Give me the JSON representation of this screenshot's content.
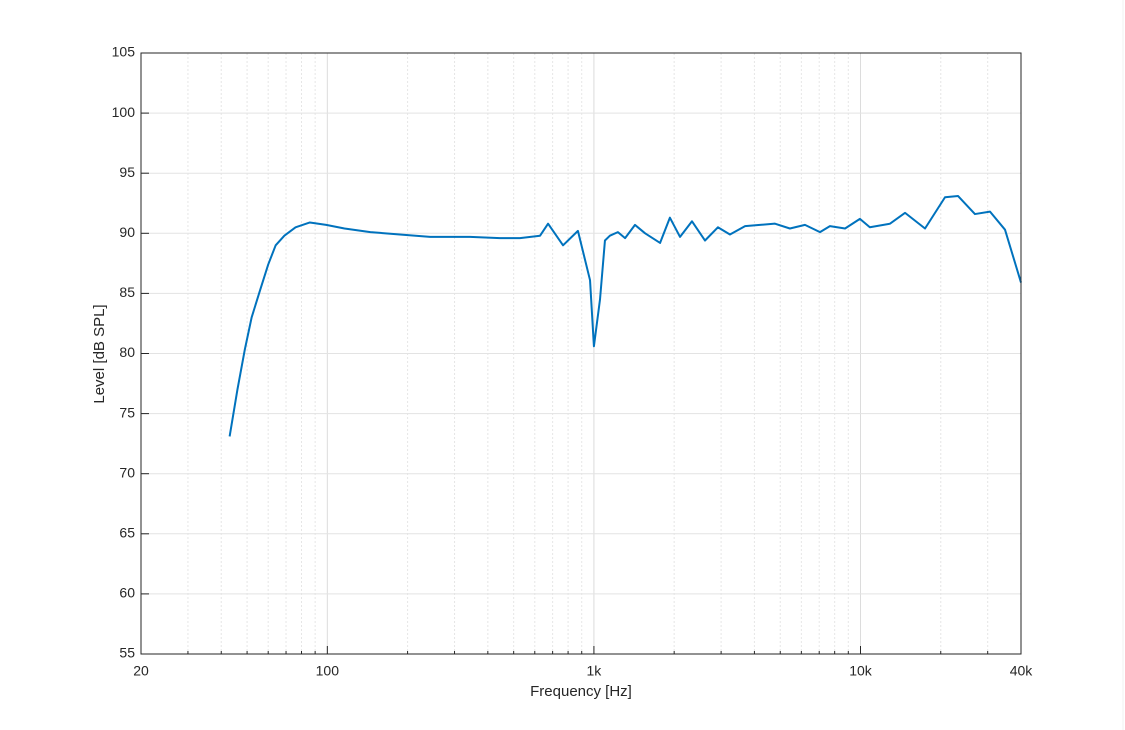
{
  "chart_data": {
    "type": "line",
    "xlabel": "Frequency [Hz]",
    "ylabel": "Level [dB SPL]",
    "xscale": "log",
    "grid": true,
    "xlim": [
      20,
      40000
    ],
    "ylim": [
      55,
      105
    ],
    "xticks": [
      20,
      100,
      {
        "value": 1000,
        "label": "1k"
      },
      {
        "value": 10000,
        "label": "10k"
      },
      {
        "value": 40000,
        "label": "40k"
      }
    ],
    "xminorticks": [
      30,
      40,
      50,
      60,
      70,
      80,
      90,
      200,
      300,
      400,
      500,
      600,
      700,
      800,
      900,
      2000,
      3000,
      4000,
      5000,
      6000,
      7000,
      8000,
      9000,
      20000,
      30000
    ],
    "yticks": [
      55,
      60,
      65,
      70,
      75,
      80,
      85,
      90,
      95,
      100,
      105
    ],
    "series": [
      {
        "color": "#0072bd",
        "x": [
          43,
          46,
          49,
          52,
          56,
          60,
          64,
          69,
          76,
          86,
          99,
          116,
          145,
          187,
          243,
          343,
          444,
          528,
          628,
          673,
          766,
          871,
          967,
          1000,
          1054,
          1100,
          1148,
          1230,
          1309,
          1426,
          1556,
          1771,
          1928,
          2104,
          2333,
          2611,
          2918,
          3238,
          3690,
          4198,
          4777,
          5435,
          6190,
          7047,
          7680,
          8750,
          9950,
          10840,
          12900,
          14700,
          17460,
          20750,
          23230,
          26870,
          30610,
          34840,
          40000
        ],
        "values": [
          73.1,
          77.0,
          80.3,
          83.0,
          85.3,
          87.4,
          89.0,
          89.8,
          90.5,
          90.9,
          90.7,
          90.4,
          90.1,
          89.9,
          89.7,
          89.7,
          89.6,
          89.6,
          89.8,
          90.8,
          89.0,
          90.2,
          86.1,
          80.6,
          84.5,
          89.4,
          89.8,
          90.1,
          89.6,
          90.7,
          90.0,
          89.2,
          91.3,
          89.7,
          91.0,
          89.4,
          90.5,
          89.9,
          90.6,
          90.7,
          90.8,
          90.4,
          90.7,
          90.1,
          90.6,
          90.4,
          91.2,
          90.5,
          90.8,
          91.7,
          90.4,
          93.0,
          93.1,
          91.6,
          91.8,
          90.3,
          85.9
        ]
      }
    ]
  }
}
